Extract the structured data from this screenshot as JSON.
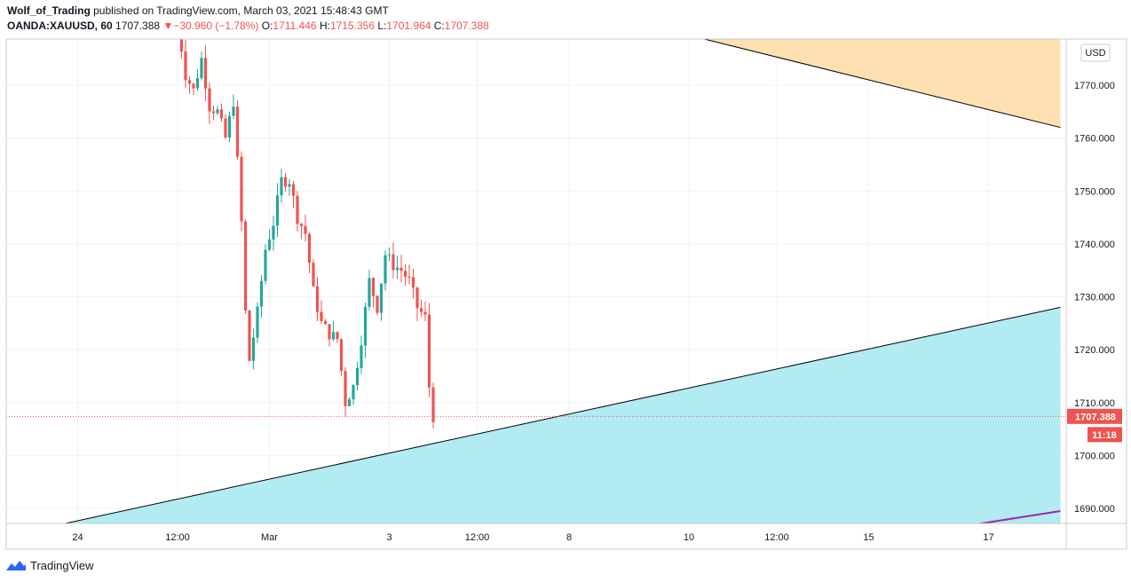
{
  "header": {
    "author": "Wolf_of_Trading",
    "published_text": "published on TradingView.com, March 03, 2021 15:48:43 GMT",
    "symbol": "OANDA:XAUUSD, 60",
    "last": "1707.388",
    "change_arrow": "▼",
    "change": "−30.960 (−1.78%)",
    "o_label": "O:",
    "o_value": "1711.446",
    "h_label": "H:",
    "h_value": "1715.356",
    "l_label": "L:",
    "l_value": "1701.964",
    "c_label": "C:",
    "c_value": "1707.388"
  },
  "footer": {
    "brand": "TradingView",
    "brand_icon": "tradingview-logo-icon"
  },
  "chart_data": {
    "type": "candlestick",
    "currency": "USD",
    "last_price_label": "1707.388",
    "countdown_label": "11:18",
    "ylim": [
      1687,
      1780
    ],
    "y_ticks": [
      {
        "value": 1770,
        "label": "1770.000"
      },
      {
        "value": 1760,
        "label": "1760.000"
      },
      {
        "value": 1750,
        "label": "1750.000"
      },
      {
        "value": 1740,
        "label": "1740.000"
      },
      {
        "value": 1730,
        "label": "1730.000"
      },
      {
        "value": 1720,
        "label": "1720.000"
      },
      {
        "value": 1710,
        "label": "1710.000"
      },
      {
        "value": 1700,
        "label": "1700.000"
      },
      {
        "value": 1690,
        "label": "1690.000"
      }
    ],
    "x_ticks": [
      {
        "bar": -25,
        "label": "24"
      },
      {
        "bar": 0,
        "label": "12:00"
      },
      {
        "bar": 23,
        "label": "Mar"
      },
      {
        "bar": 53,
        "label": "3"
      },
      {
        "bar": 75,
        "label": "12:00"
      },
      {
        "bar": 98,
        "label": "8"
      },
      {
        "bar": 128,
        "label": "10"
      },
      {
        "bar": 150,
        "label": "12:00"
      },
      {
        "bar": 173,
        "label": "15"
      },
      {
        "bar": 203,
        "label": "17"
      }
    ],
    "bar_anchor_price_path": [
      [
        0,
        1782
      ],
      [
        2,
        1772
      ],
      [
        4,
        1769
      ],
      [
        6,
        1775
      ],
      [
        8,
        1766
      ],
      [
        10,
        1765
      ],
      [
        12,
        1760
      ],
      [
        14,
        1767
      ],
      [
        16,
        1744
      ],
      [
        17,
        1727
      ],
      [
        18,
        1718
      ],
      [
        20,
        1727
      ],
      [
        22,
        1739
      ],
      [
        24,
        1744
      ],
      [
        26,
        1752
      ],
      [
        28,
        1752
      ],
      [
        30,
        1745
      ],
      [
        32,
        1742
      ],
      [
        34,
        1731
      ],
      [
        36,
        1725
      ],
      [
        38,
        1723
      ],
      [
        40,
        1722
      ],
      [
        42,
        1710
      ],
      [
        44,
        1713
      ],
      [
        46,
        1722
      ],
      [
        48,
        1733
      ],
      [
        50,
        1728
      ],
      [
        52,
        1738
      ],
      [
        54,
        1736
      ],
      [
        56,
        1735
      ],
      [
        58,
        1733
      ],
      [
        60,
        1728
      ],
      [
        62,
        1726
      ],
      [
        63,
        1713
      ],
      [
        64,
        1707.388
      ]
    ],
    "resistance_zone": {
      "color": "#ffe0b2",
      "line": [
        [
          117,
          1781.5
        ],
        [
          221,
          1762
        ]
      ]
    },
    "support_zone": {
      "color": "#b2ebf2",
      "line": [
        [
          -29,
          1687
        ],
        [
          221,
          1728
        ]
      ]
    },
    "purple_line": {
      "color": "#9c27b0",
      "points": [
        [
          200,
          1687
        ],
        [
          221,
          1689.5
        ]
      ]
    },
    "colors": {
      "up": "#26a69a",
      "down": "#ef5350"
    }
  }
}
